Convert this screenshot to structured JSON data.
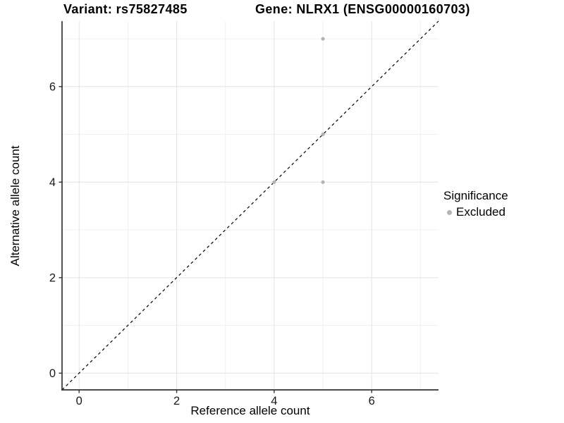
{
  "chart_data": {
    "type": "scatter",
    "titles": {
      "left": "Variant: rs75827485",
      "right": "Gene: NLRX1 (ENSG00000160703)"
    },
    "xlabel": "Reference allele count",
    "ylabel": "Alternative allele count",
    "xticks": [
      0,
      2,
      4,
      6
    ],
    "yticks": [
      0,
      2,
      4,
      6
    ],
    "minor_ticks": [
      1,
      3,
      5,
      7
    ],
    "xlim": [
      -0.35,
      7.37
    ],
    "ylim": [
      -0.35,
      7.37
    ],
    "grid": {
      "major_color": "#e6e6e6",
      "minor_color": "#f0f0f0",
      "visible": true
    },
    "axis_color": "#333333",
    "tick_label_color": "#1a1a1a",
    "identity_line": {
      "style": "dashed",
      "color": "#000000",
      "slope": 1,
      "intercept": 0
    },
    "series": [
      {
        "name": "Excluded",
        "color": "#b3b3b3",
        "points": [
          [
            5,
            7
          ],
          [
            5,
            5
          ],
          [
            4,
            4
          ],
          [
            5,
            4
          ]
        ]
      }
    ],
    "legend": {
      "title": "Significance",
      "position": "right",
      "items": [
        {
          "label": "Excluded",
          "color": "#b3b3b3"
        }
      ]
    }
  }
}
